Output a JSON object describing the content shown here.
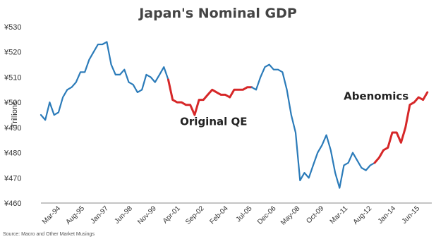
{
  "chart_data": {
    "type": "line",
    "title": "Japan's Nominal GDP",
    "ylabel": "Trillions",
    "xlabel": "",
    "ylim": [
      460,
      530
    ],
    "y_ticks": [
      "¥460",
      "¥470",
      "¥480",
      "¥490",
      "¥500",
      "¥510",
      "¥520",
      "¥530"
    ],
    "x_tick_labels": [
      "Mar-94",
      "Aug-95",
      "Jan-97",
      "Jun-98",
      "Nov-99",
      "Apr-01",
      "Sep-02",
      "Feb-04",
      "Jul-05",
      "Dec-06",
      "May-08",
      "Oct-09",
      "Mar-11",
      "Aug-12",
      "Jan-14",
      "Jun-15"
    ],
    "grid": false,
    "x_range": [
      "1994-03",
      "2016-06"
    ],
    "series": [
      {
        "color": "#2b7bb9",
        "x": [
          "1994-03",
          "1994-06",
          "1994-09",
          "1994-12",
          "1995-03",
          "1995-06",
          "1995-09",
          "1995-12",
          "1996-03",
          "1996-06",
          "1996-09",
          "1996-12",
          "1997-03",
          "1997-06",
          "1997-09",
          "1997-12",
          "1998-03",
          "1998-06",
          "1998-09",
          "1998-12",
          "1999-03",
          "1999-06",
          "1999-09",
          "1999-12",
          "2000-03",
          "2000-06",
          "2000-09",
          "2000-12",
          "2001-03",
          "2001-06"
        ],
        "values": [
          495,
          493,
          500,
          495,
          496,
          502,
          505,
          506,
          508,
          512,
          512,
          517,
          520,
          523,
          523,
          524,
          515,
          511,
          511,
          513,
          508,
          507,
          504,
          505,
          511,
          510,
          508,
          511,
          514,
          509
        ]
      },
      {
        "color": "#d62728",
        "x": [
          "2001-06",
          "2001-09",
          "2001-12",
          "2002-03",
          "2002-06",
          "2002-09",
          "2002-12",
          "2003-03",
          "2003-06",
          "2003-09",
          "2003-12",
          "2004-03",
          "2004-06",
          "2004-09",
          "2004-12",
          "2005-03",
          "2005-06",
          "2005-09",
          "2005-12",
          "2006-03"
        ],
        "values": [
          509,
          501,
          500,
          500,
          499,
          499,
          495,
          501,
          501,
          503,
          505,
          504,
          503,
          503,
          502,
          505,
          505,
          505,
          506,
          506
        ]
      },
      {
        "color": "#2b7bb9",
        "x": [
          "2006-03",
          "2006-06",
          "2006-09",
          "2006-12",
          "2007-03",
          "2007-06",
          "2007-09",
          "2007-12",
          "2008-03",
          "2008-06",
          "2008-09",
          "2008-12",
          "2009-03",
          "2009-06",
          "2009-09",
          "2009-12",
          "2010-03",
          "2010-06",
          "2010-09",
          "2010-12",
          "2011-03",
          "2011-06",
          "2011-09",
          "2011-12",
          "2012-03",
          "2012-06",
          "2012-09",
          "2012-12",
          "2013-03"
        ],
        "values": [
          506,
          505,
          510,
          514,
          515,
          513,
          513,
          512,
          505,
          495,
          488,
          469,
          472,
          470,
          475,
          480,
          483,
          487,
          481,
          472,
          466,
          475,
          476,
          480,
          477,
          474,
          473,
          475,
          476
        ]
      },
      {
        "color": "#d62728",
        "x": [
          "2013-03",
          "2013-06",
          "2013-09",
          "2013-12",
          "2014-03",
          "2014-06",
          "2014-09",
          "2014-12",
          "2015-03",
          "2015-06",
          "2015-09",
          "2015-12",
          "2016-03"
        ],
        "values": [
          476,
          478,
          481,
          482,
          488,
          488,
          484,
          490,
          499,
          500,
          502,
          501,
          504
        ]
      }
    ],
    "annotations": [
      {
        "text": "Original QE",
        "x": "2004-01",
        "y": 491
      },
      {
        "text": "Abenomics",
        "x": "2013-04",
        "y": 501
      }
    ],
    "source": "Source: Macro and Other Market Musings"
  }
}
